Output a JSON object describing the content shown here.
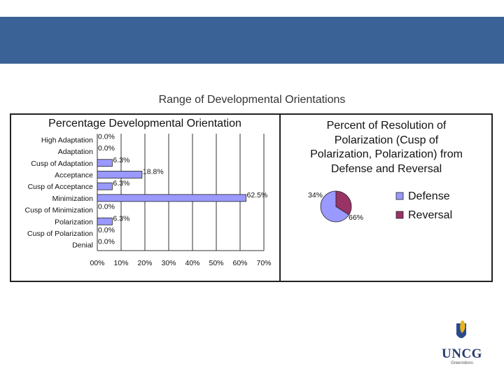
{
  "slide": {
    "title": "Range of Developmental  Orientations"
  },
  "logo": {
    "text": "UNCG",
    "sub": "Greensboro"
  },
  "chart_data": [
    {
      "type": "bar",
      "orientation": "horizontal",
      "title": "Percentage Developmental Orientation",
      "categories": [
        "High Adaptation",
        "Adaptation",
        "Cusp of Adaptation",
        "Acceptance",
        "Cusp of Acceptance",
        "Minimization",
        "Cusp of Minimization",
        "Polarization",
        "Cusp of Polarization",
        "Denial"
      ],
      "values": [
        0.0,
        0.0,
        6.3,
        18.8,
        6.3,
        62.5,
        0.0,
        6.3,
        0.0,
        0.0
      ],
      "value_labels": [
        "0.0%",
        "0.0%",
        "6.3%",
        "18.8%",
        "6.3%",
        "62.5%",
        "0.0%",
        "6.3%",
        "0.0%",
        "0.0%"
      ],
      "xlim": [
        0,
        70
      ],
      "xticks": [
        "00%",
        "10%",
        "20%",
        "30%",
        "40%",
        "50%",
        "60%",
        "70%"
      ],
      "grid": true,
      "bar_color": "#9999ff"
    },
    {
      "type": "pie",
      "title_lines": [
        "Percent of Resolution of",
        "Polarization (Cusp of",
        "Polarization, Polarization) from",
        "Defense and Reversal"
      ],
      "labels": [
        "Defense",
        "Reversal"
      ],
      "values": [
        66,
        34
      ],
      "value_labels": [
        "66%",
        "34%"
      ],
      "colors": [
        "#9999ff",
        "#993366"
      ],
      "legend": "right"
    }
  ]
}
